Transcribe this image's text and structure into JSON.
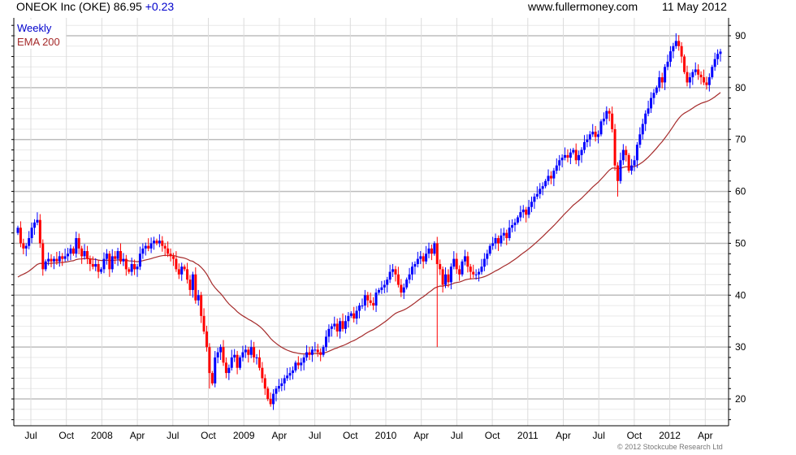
{
  "header": {
    "title": "ONEOK Inc (OKE) 86.95",
    "change": "+0.23",
    "site": "www.fullermoney.com",
    "date": "11 May 2012"
  },
  "footer": {
    "copyright": "© 2012 Stockcube Research Ltd"
  },
  "colors": {
    "up": "#0000ff",
    "down": "#ff0000",
    "ema": "#a52a2a",
    "legend_weekly": "#0000cc"
  },
  "chart_data": {
    "type": "candlestick",
    "title": "ONEOK Inc (OKE)",
    "legend": [
      "Weekly",
      "EMA 200"
    ],
    "legend_placement": "top-left",
    "y_ticks": [
      20,
      30,
      40,
      50,
      60,
      70,
      80,
      90
    ],
    "ylim": [
      15,
      93
    ],
    "x_ticks": [
      "Jul",
      "Oct",
      "2008",
      "Apr",
      "Jul",
      "Oct",
      "2009",
      "Apr",
      "Jul",
      "Oct",
      "2010",
      "Apr",
      "Jul",
      "Oct",
      "2011",
      "Apr",
      "Jul",
      "Oct",
      "2012",
      "Apr"
    ],
    "first_open": 52,
    "weekly_closes": [
      53,
      50,
      49,
      49.5,
      51,
      53,
      54,
      54.5,
      50,
      45,
      46.5,
      47,
      46.5,
      47,
      46.5,
      47.5,
      47,
      47.5,
      48,
      49,
      48,
      51,
      49,
      47.5,
      48.5,
      47,
      46,
      45.5,
      46,
      44.5,
      45,
      47,
      48,
      45,
      47.5,
      47,
      48.5,
      46.5,
      47,
      45,
      44.5,
      46,
      45,
      45.5,
      48,
      49,
      49.5,
      49,
      50,
      50.5,
      50,
      50.5,
      49.5,
      49,
      48,
      47.5,
      47,
      45,
      44,
      45.5,
      45,
      43,
      41,
      44,
      39,
      40,
      36,
      33,
      30,
      25,
      23,
      28,
      29,
      30,
      27,
      25,
      26,
      28,
      28.5,
      26,
      28,
      29,
      29.5,
      28.5,
      30,
      28,
      28,
      26,
      24,
      22,
      20,
      19,
      21,
      22,
      22.5,
      23,
      24,
      24.5,
      25,
      25.5,
      27,
      26.5,
      27,
      28,
      29,
      28.5,
      29.5,
      29.5,
      29,
      28.5,
      30,
      32,
      33.5,
      34,
      34.5,
      33,
      35,
      33.5,
      35,
      36,
      36.5,
      35.5,
      37,
      38,
      38,
      40,
      39,
      38.5,
      38,
      40.5,
      41,
      41.5,
      42,
      43,
      44.5,
      45,
      44,
      42,
      40.5,
      41.5,
      43,
      44,
      45.5,
      46,
      47,
      47.5,
      46.5,
      48,
      49,
      48,
      50,
      46,
      45,
      42,
      44,
      42.5,
      45.5,
      47,
      45,
      44,
      46.5,
      47.5,
      45.5,
      44.5,
      44,
      44,
      44.5,
      45.5,
      47,
      48,
      49.5,
      50,
      51,
      50,
      51.5,
      52,
      51,
      53,
      53.5,
      54,
      55,
      56,
      56.5,
      55.5,
      57,
      58,
      59,
      59.5,
      60.5,
      61,
      62,
      63,
      62.5,
      64,
      65,
      66,
      66.5,
      67,
      66.5,
      67.5,
      68,
      66,
      67,
      68,
      69.5,
      70,
      71,
      71.5,
      70.5,
      71,
      73.5,
      74,
      75.5,
      75,
      72,
      65,
      62,
      66,
      68,
      67,
      64,
      65,
      66,
      69,
      71,
      73,
      75,
      76,
      78,
      79,
      80,
      82,
      81,
      84,
      85,
      87,
      88,
      89,
      88,
      86,
      83,
      81,
      82,
      83,
      83.5,
      82.5,
      82,
      81,
      80.5,
      82,
      84,
      85.5,
      86.5,
      86.95
    ],
    "extreme_lows": [
      {
        "index": 69,
        "low": 22
      },
      {
        "index": 91,
        "low": 18.5
      },
      {
        "index": 151,
        "low": 30
      },
      {
        "index": 216,
        "low": 59
      }
    ],
    "ema_start": 43
  }
}
